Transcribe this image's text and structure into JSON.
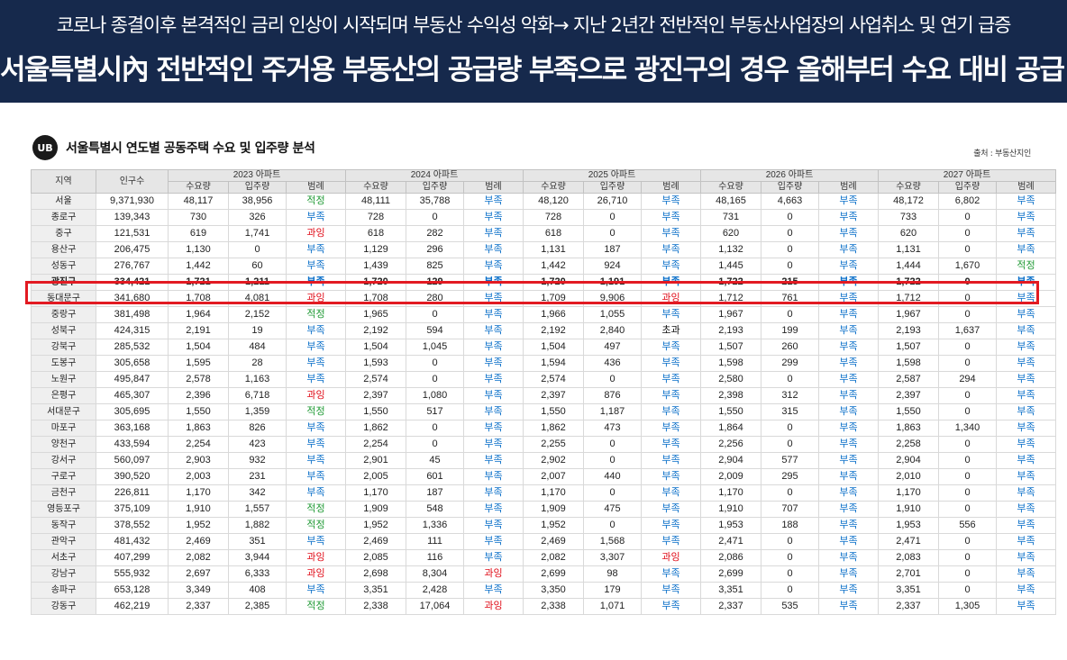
{
  "banner": {
    "line1": "코로나 종결이후 본격적인 금리 인상이 시작되며 부동산 수익성 악화→ 지난 2년간 전반적인 부동산사업장의 사업취소 및 연기 급증",
    "line2": "서울특별시內 전반적인 주거용 부동산의 공급량 부족으로 광진구의 경우 올해부터 수요 대비 공급 부족"
  },
  "section": {
    "logo": "UB",
    "title": "서울특별시 연도별 공동주택 수요 및 입주량 분석",
    "source": "출처 : 부동산지인"
  },
  "table": {
    "col_region": "지역",
    "col_population": "인구수",
    "years": [
      "2023 아파트",
      "2024 아파트",
      "2025 아파트",
      "2026 아파트",
      "2027 아파트"
    ],
    "sub_headers": [
      "수요량",
      "입주량",
      "범례"
    ],
    "highlight_row": 6,
    "rows": [
      {
        "region": "서울",
        "pop": "9,371,930",
        "y": [
          [
            "48,117",
            "38,956",
            "적정"
          ],
          [
            "48,111",
            "35,788",
            "부족"
          ],
          [
            "48,120",
            "26,710",
            "부족"
          ],
          [
            "48,165",
            "4,663",
            "부족"
          ],
          [
            "48,172",
            "6,802",
            "부족"
          ]
        ]
      },
      {
        "region": "종로구",
        "pop": "139,343",
        "y": [
          [
            "730",
            "326",
            "부족"
          ],
          [
            "728",
            "0",
            "부족"
          ],
          [
            "728",
            "0",
            "부족"
          ],
          [
            "731",
            "0",
            "부족"
          ],
          [
            "733",
            "0",
            "부족"
          ]
        ]
      },
      {
        "region": "중구",
        "pop": "121,531",
        "y": [
          [
            "619",
            "1,741",
            "과잉"
          ],
          [
            "618",
            "282",
            "부족"
          ],
          [
            "618",
            "0",
            "부족"
          ],
          [
            "620",
            "0",
            "부족"
          ],
          [
            "620",
            "0",
            "부족"
          ]
        ]
      },
      {
        "region": "용산구",
        "pop": "206,475",
        "y": [
          [
            "1,130",
            "0",
            "부족"
          ],
          [
            "1,129",
            "296",
            "부족"
          ],
          [
            "1,131",
            "187",
            "부족"
          ],
          [
            "1,132",
            "0",
            "부족"
          ],
          [
            "1,131",
            "0",
            "부족"
          ]
        ]
      },
      {
        "region": "성동구",
        "pop": "276,767",
        "y": [
          [
            "1,442",
            "60",
            "부족"
          ],
          [
            "1,439",
            "825",
            "부족"
          ],
          [
            "1,442",
            "924",
            "부족"
          ],
          [
            "1,445",
            "0",
            "부족"
          ],
          [
            "1,444",
            "1,670",
            "적정"
          ]
        ]
      },
      {
        "region": "광진구",
        "pop": "334,421",
        "y": [
          [
            "1,721",
            "1,211",
            "부족"
          ],
          [
            "1,720",
            "129",
            "부족"
          ],
          [
            "1,720",
            "1,191",
            "부족"
          ],
          [
            "1,722",
            "215",
            "부족"
          ],
          [
            "1,722",
            "0",
            "부족"
          ]
        ]
      },
      {
        "region": "동대문구",
        "pop": "341,680",
        "y": [
          [
            "1,708",
            "4,081",
            "과잉"
          ],
          [
            "1,708",
            "280",
            "부족"
          ],
          [
            "1,709",
            "9,906",
            "과잉"
          ],
          [
            "1,712",
            "761",
            "부족"
          ],
          [
            "1,712",
            "0",
            "부족"
          ]
        ]
      },
      {
        "region": "중랑구",
        "pop": "381,498",
        "y": [
          [
            "1,964",
            "2,152",
            "적정"
          ],
          [
            "1,965",
            "0",
            "부족"
          ],
          [
            "1,966",
            "1,055",
            "부족"
          ],
          [
            "1,967",
            "0",
            "부족"
          ],
          [
            "1,967",
            "0",
            "부족"
          ]
        ]
      },
      {
        "region": "성북구",
        "pop": "424,315",
        "y": [
          [
            "2,191",
            "19",
            "부족"
          ],
          [
            "2,192",
            "594",
            "부족"
          ],
          [
            "2,192",
            "2,840",
            "초과"
          ],
          [
            "2,193",
            "199",
            "부족"
          ],
          [
            "2,193",
            "1,637",
            "부족"
          ]
        ]
      },
      {
        "region": "강북구",
        "pop": "285,532",
        "y": [
          [
            "1,504",
            "484",
            "부족"
          ],
          [
            "1,504",
            "1,045",
            "부족"
          ],
          [
            "1,504",
            "497",
            "부족"
          ],
          [
            "1,507",
            "260",
            "부족"
          ],
          [
            "1,507",
            "0",
            "부족"
          ]
        ]
      },
      {
        "region": "도봉구",
        "pop": "305,658",
        "y": [
          [
            "1,595",
            "28",
            "부족"
          ],
          [
            "1,593",
            "0",
            "부족"
          ],
          [
            "1,594",
            "436",
            "부족"
          ],
          [
            "1,598",
            "299",
            "부족"
          ],
          [
            "1,598",
            "0",
            "부족"
          ]
        ]
      },
      {
        "region": "노원구",
        "pop": "495,847",
        "y": [
          [
            "2,578",
            "1,163",
            "부족"
          ],
          [
            "2,574",
            "0",
            "부족"
          ],
          [
            "2,574",
            "0",
            "부족"
          ],
          [
            "2,580",
            "0",
            "부족"
          ],
          [
            "2,587",
            "294",
            "부족"
          ]
        ]
      },
      {
        "region": "은평구",
        "pop": "465,307",
        "y": [
          [
            "2,396",
            "6,718",
            "과잉"
          ],
          [
            "2,397",
            "1,080",
            "부족"
          ],
          [
            "2,397",
            "876",
            "부족"
          ],
          [
            "2,398",
            "312",
            "부족"
          ],
          [
            "2,397",
            "0",
            "부족"
          ]
        ]
      },
      {
        "region": "서대문구",
        "pop": "305,695",
        "y": [
          [
            "1,550",
            "1,359",
            "적정"
          ],
          [
            "1,550",
            "517",
            "부족"
          ],
          [
            "1,550",
            "1,187",
            "부족"
          ],
          [
            "1,550",
            "315",
            "부족"
          ],
          [
            "1,550",
            "0",
            "부족"
          ]
        ]
      },
      {
        "region": "마포구",
        "pop": "363,168",
        "y": [
          [
            "1,863",
            "826",
            "부족"
          ],
          [
            "1,862",
            "0",
            "부족"
          ],
          [
            "1,862",
            "473",
            "부족"
          ],
          [
            "1,864",
            "0",
            "부족"
          ],
          [
            "1,863",
            "1,340",
            "부족"
          ]
        ]
      },
      {
        "region": "양천구",
        "pop": "433,594",
        "y": [
          [
            "2,254",
            "423",
            "부족"
          ],
          [
            "2,254",
            "0",
            "부족"
          ],
          [
            "2,255",
            "0",
            "부족"
          ],
          [
            "2,256",
            "0",
            "부족"
          ],
          [
            "2,258",
            "0",
            "부족"
          ]
        ]
      },
      {
        "region": "강서구",
        "pop": "560,097",
        "y": [
          [
            "2,903",
            "932",
            "부족"
          ],
          [
            "2,901",
            "45",
            "부족"
          ],
          [
            "2,902",
            "0",
            "부족"
          ],
          [
            "2,904",
            "577",
            "부족"
          ],
          [
            "2,904",
            "0",
            "부족"
          ]
        ]
      },
      {
        "region": "구로구",
        "pop": "390,520",
        "y": [
          [
            "2,003",
            "231",
            "부족"
          ],
          [
            "2,005",
            "601",
            "부족"
          ],
          [
            "2,007",
            "440",
            "부족"
          ],
          [
            "2,009",
            "295",
            "부족"
          ],
          [
            "2,010",
            "0",
            "부족"
          ]
        ]
      },
      {
        "region": "금천구",
        "pop": "226,811",
        "y": [
          [
            "1,170",
            "342",
            "부족"
          ],
          [
            "1,170",
            "187",
            "부족"
          ],
          [
            "1,170",
            "0",
            "부족"
          ],
          [
            "1,170",
            "0",
            "부족"
          ],
          [
            "1,170",
            "0",
            "부족"
          ]
        ]
      },
      {
        "region": "영등포구",
        "pop": "375,109",
        "y": [
          [
            "1,910",
            "1,557",
            "적정"
          ],
          [
            "1,909",
            "548",
            "부족"
          ],
          [
            "1,909",
            "475",
            "부족"
          ],
          [
            "1,910",
            "707",
            "부족"
          ],
          [
            "1,910",
            "0",
            "부족"
          ]
        ]
      },
      {
        "region": "동작구",
        "pop": "378,552",
        "y": [
          [
            "1,952",
            "1,882",
            "적정"
          ],
          [
            "1,952",
            "1,336",
            "부족"
          ],
          [
            "1,952",
            "0",
            "부족"
          ],
          [
            "1,953",
            "188",
            "부족"
          ],
          [
            "1,953",
            "556",
            "부족"
          ]
        ]
      },
      {
        "region": "관악구",
        "pop": "481,432",
        "y": [
          [
            "2,469",
            "351",
            "부족"
          ],
          [
            "2,469",
            "111",
            "부족"
          ],
          [
            "2,469",
            "1,568",
            "부족"
          ],
          [
            "2,471",
            "0",
            "부족"
          ],
          [
            "2,471",
            "0",
            "부족"
          ]
        ]
      },
      {
        "region": "서초구",
        "pop": "407,299",
        "y": [
          [
            "2,082",
            "3,944",
            "과잉"
          ],
          [
            "2,085",
            "116",
            "부족"
          ],
          [
            "2,082",
            "3,307",
            "과잉"
          ],
          [
            "2,086",
            "0",
            "부족"
          ],
          [
            "2,083",
            "0",
            "부족"
          ]
        ]
      },
      {
        "region": "강남구",
        "pop": "555,932",
        "y": [
          [
            "2,697",
            "6,333",
            "과잉"
          ],
          [
            "2,698",
            "8,304",
            "과잉"
          ],
          [
            "2,699",
            "98",
            "부족"
          ],
          [
            "2,699",
            "0",
            "부족"
          ],
          [
            "2,701",
            "0",
            "부족"
          ]
        ]
      },
      {
        "region": "송파구",
        "pop": "653,128",
        "y": [
          [
            "3,349",
            "408",
            "부족"
          ],
          [
            "3,351",
            "2,428",
            "부족"
          ],
          [
            "3,350",
            "179",
            "부족"
          ],
          [
            "3,351",
            "0",
            "부족"
          ],
          [
            "3,351",
            "0",
            "부족"
          ]
        ]
      },
      {
        "region": "강동구",
        "pop": "462,219",
        "y": [
          [
            "2,337",
            "2,385",
            "적정"
          ],
          [
            "2,338",
            "17,064",
            "과잉"
          ],
          [
            "2,338",
            "1,071",
            "부족"
          ],
          [
            "2,337",
            "535",
            "부족"
          ],
          [
            "2,337",
            "1,305",
            "부족"
          ]
        ]
      }
    ]
  },
  "colors": {
    "banner_bg": "#16294c",
    "short": "#0b70c9",
    "over": "#e00d19",
    "ok": "#1f9a34",
    "highlight": "#e21a22"
  }
}
